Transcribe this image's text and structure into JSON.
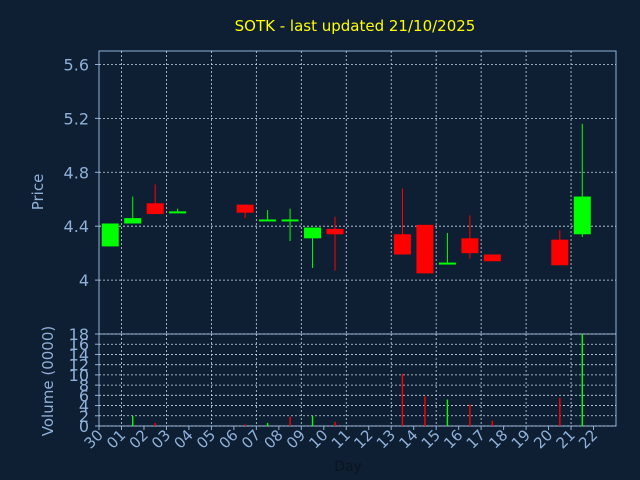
{
  "chart_data": [
    {
      "type": "candlestick",
      "title": "SOTK - last updated 21/10/2025",
      "ylabel": "Price",
      "ylim": [
        3.6,
        5.7
      ],
      "yticks": [
        4,
        4.4,
        4.8,
        5.2,
        5.6
      ],
      "ytick_labels": [
        "4",
        "4.4",
        "4.8",
        "5.2",
        "5.6"
      ],
      "grid": true,
      "colors": {
        "up": "#00ff00",
        "down": "#ff0000",
        "background": "#0f1f33",
        "axis": "#8fb0d8",
        "title": "#ffff00",
        "grid": "#c8d4e4"
      },
      "candles": [
        {
          "day": "30",
          "open": 4.25,
          "close": 4.42,
          "high": 4.42,
          "low": 4.25
        },
        {
          "day": "01",
          "open": 4.42,
          "close": 4.46,
          "high": 4.62,
          "low": 4.42
        },
        {
          "day": "02",
          "open": 4.57,
          "close": 4.49,
          "high": 4.71,
          "low": 4.49
        },
        {
          "day": "03",
          "open": 4.5,
          "close": 4.51,
          "high": 4.53,
          "low": 4.5
        },
        {
          "day": "06",
          "open": 4.56,
          "close": 4.5,
          "high": 4.56,
          "low": 4.46
        },
        {
          "day": "07",
          "open": 4.45,
          "close": 4.45,
          "high": 4.52,
          "low": 4.44
        },
        {
          "day": "08",
          "open": 4.45,
          "close": 4.45,
          "high": 4.53,
          "low": 4.29
        },
        {
          "day": "09",
          "open": 4.31,
          "close": 4.39,
          "high": 4.39,
          "low": 4.09
        },
        {
          "day": "10",
          "open": 4.38,
          "close": 4.34,
          "high": 4.47,
          "low": 4.07
        },
        {
          "day": "13",
          "open": 4.34,
          "close": 4.19,
          "high": 4.68,
          "low": 4.19
        },
        {
          "day": "14",
          "open": 4.41,
          "close": 4.05,
          "high": 4.41,
          "low": 4.05
        },
        {
          "day": "15",
          "open": 4.13,
          "close": 4.13,
          "high": 4.35,
          "low": 4.12
        },
        {
          "day": "16",
          "open": 4.31,
          "close": 4.2,
          "high": 4.48,
          "low": 4.16
        },
        {
          "day": "17",
          "open": 4.19,
          "close": 4.14,
          "high": 4.19,
          "low": 4.14
        },
        {
          "day": "20",
          "open": 4.3,
          "close": 4.11,
          "high": 4.37,
          "low": 4.11
        },
        {
          "day": "21",
          "open": 4.34,
          "close": 4.62,
          "high": 5.16,
          "low": 4.32
        }
      ]
    },
    {
      "type": "bar",
      "xlabel": "Day",
      "ylabel": "Volume (0000)",
      "ylim": [
        0,
        18
      ],
      "yticks": [
        0,
        2,
        4,
        6,
        8,
        10,
        12,
        14,
        16,
        18
      ],
      "ytick_labels": [
        "0",
        "2",
        "4",
        "6",
        "8",
        "10",
        "12",
        "14",
        "16",
        "18"
      ],
      "categories": [
        "30",
        "01",
        "02",
        "03",
        "04",
        "05",
        "06",
        "07",
        "08",
        "09",
        "10",
        "11",
        "12",
        "13",
        "14",
        "15",
        "16",
        "17",
        "18",
        "19",
        "20",
        "21",
        "22"
      ],
      "bars": [
        {
          "day": "01",
          "value": 2.0,
          "direction": "up"
        },
        {
          "day": "02",
          "value": 0.6,
          "direction": "down"
        },
        {
          "day": "06",
          "value": 0.3,
          "direction": "down"
        },
        {
          "day": "07",
          "value": 0.6,
          "direction": "up"
        },
        {
          "day": "08",
          "value": 1.8,
          "direction": "down"
        },
        {
          "day": "09",
          "value": 2.0,
          "direction": "up"
        },
        {
          "day": "10",
          "value": 0.8,
          "direction": "down"
        },
        {
          "day": "13",
          "value": 10.2,
          "direction": "down"
        },
        {
          "day": "14",
          "value": 5.8,
          "direction": "down"
        },
        {
          "day": "15",
          "value": 5.2,
          "direction": "up"
        },
        {
          "day": "16",
          "value": 4.2,
          "direction": "down"
        },
        {
          "day": "17",
          "value": 1.0,
          "direction": "down"
        },
        {
          "day": "20",
          "value": 5.5,
          "direction": "down"
        },
        {
          "day": "21",
          "value": 18.0,
          "direction": "up"
        }
      ]
    }
  ]
}
